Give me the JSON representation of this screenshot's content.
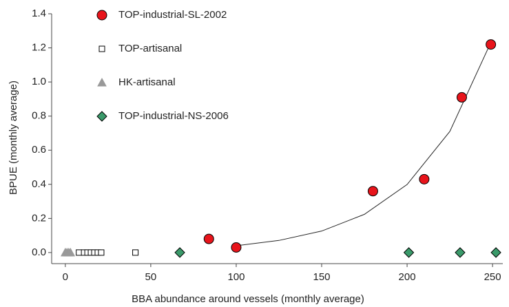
{
  "chart_data": {
    "type": "scatter",
    "x_label": "BBA abundance around vessels (monthly average)",
    "y_label": "BPUE (monthly average)",
    "xlim": [
      -8,
      256
    ],
    "ylim": [
      -0.065,
      1.4
    ],
    "xticks": [
      0,
      50,
      100,
      150,
      200,
      250
    ],
    "yticks": [
      {
        "value": 0,
        "label": "0.0"
      },
      0.2,
      0.4,
      0.6,
      0.8,
      {
        "value": 1,
        "label": "1.0"
      },
      1.2,
      1.4
    ],
    "series": [
      {
        "name": "TOP-industrial-SL-2002",
        "color": "#e8141b",
        "marker": "circle",
        "x": [
          84,
          100,
          180,
          210,
          232,
          249
        ],
        "values": [
          0.08,
          0.03,
          0.36,
          0.43,
          0.91,
          1.22
        ]
      },
      {
        "name": "TOP-artisanal",
        "color": "#ffffff",
        "marker": "square",
        "x": [
          8,
          11,
          13,
          15,
          17,
          19,
          21,
          41
        ],
        "values": [
          0,
          0,
          0,
          0,
          0,
          0,
          0,
          0
        ]
      },
      {
        "name": "HK-artisanal",
        "color": "#999999",
        "marker": "triangle",
        "x": [
          0,
          1,
          2,
          3
        ],
        "values": [
          0,
          0,
          0,
          0
        ]
      },
      {
        "name": "TOP-industrial-NS-2006",
        "color": "#3a9a6a",
        "marker": "diamond",
        "x": [
          67,
          201,
          231,
          252
        ],
        "values": [
          0,
          0,
          0,
          0
        ]
      }
    ],
    "trendline": {
      "x": [
        100,
        125,
        150,
        175,
        200,
        225,
        248
      ],
      "values": [
        0.04,
        0.071,
        0.126,
        0.224,
        0.399,
        0.71,
        1.21
      ]
    }
  }
}
